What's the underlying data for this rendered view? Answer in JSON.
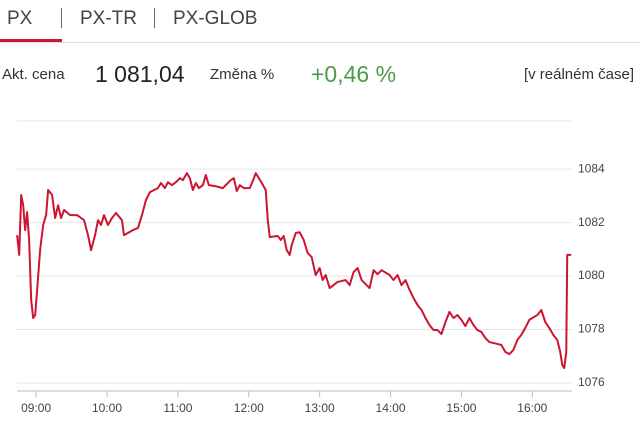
{
  "tabs": [
    "PX",
    "PX-TR",
    "PX-GLOB"
  ],
  "quote": {
    "price_label": "Akt. cena",
    "price": "1 081,04",
    "change_label": "Změna %",
    "change": "+0,46 %",
    "realtime": "[v reálném čase]"
  },
  "chart_data": {
    "type": "line",
    "color": "#cc1530",
    "grid": true,
    "x": [
      8.732,
      8.761,
      8.789,
      8.817,
      8.845,
      8.873,
      8.901,
      8.93,
      8.958,
      8.986,
      9.014,
      9.056,
      9.099,
      9.141,
      9.169,
      9.225,
      9.268,
      9.31,
      9.352,
      9.394,
      9.479,
      9.577,
      9.676,
      9.732,
      9.775,
      9.831,
      9.873,
      9.915,
      9.958,
      10.014,
      10.07,
      10.127,
      10.211,
      10.239,
      10.366,
      10.437,
      10.493,
      10.549,
      10.606,
      10.718,
      10.761,
      10.817,
      10.859,
      10.915,
      10.972,
      11.028,
      11.07,
      11.127,
      11.169,
      11.211,
      11.254,
      11.296,
      11.352,
      11.394,
      11.437,
      11.535,
      11.634,
      11.746,
      11.789,
      11.831,
      11.873,
      11.93,
      12.014,
      12.056,
      12.099,
      12.183,
      12.239,
      12.268,
      12.296,
      12.408,
      12.451,
      12.493,
      12.535,
      12.577,
      12.606,
      12.662,
      12.718,
      12.775,
      12.831,
      12.887,
      12.944,
      13.0,
      13.042,
      13.085,
      13.141,
      13.254,
      13.366,
      13.423,
      13.479,
      13.535,
      13.592,
      13.704,
      13.761,
      13.817,
      13.873,
      13.986,
      14.042,
      14.099,
      14.155,
      14.211,
      14.268,
      14.324,
      14.38,
      14.437,
      14.493,
      14.549,
      14.606,
      14.662,
      14.718,
      14.775,
      14.831,
      14.887,
      14.944,
      15.0,
      15.056,
      15.113,
      15.169,
      15.225,
      15.282,
      15.338,
      15.394,
      15.507,
      15.563,
      15.62,
      15.676,
      15.732,
      15.789,
      15.845,
      15.901,
      15.958,
      16.07,
      16.127,
      16.183,
      16.239,
      16.296,
      16.352,
      16.394,
      16.423,
      16.451,
      16.479,
      16.493,
      16.549
    ],
    "values": [
      1081.53,
      1080.79,
      1083.03,
      1082.65,
      1081.72,
      1082.39,
      1081.35,
      1079.1,
      1078.43,
      1078.54,
      1079.48,
      1080.97,
      1081.91,
      1082.28,
      1083.22,
      1083.03,
      1082.17,
      1082.65,
      1082.17,
      1082.47,
      1082.28,
      1082.28,
      1082.09,
      1081.53,
      1080.97,
      1081.53,
      1082.09,
      1081.91,
      1082.28,
      1081.91,
      1082.17,
      1082.36,
      1082.09,
      1081.53,
      1081.72,
      1081.8,
      1082.28,
      1082.84,
      1083.14,
      1083.29,
      1083.48,
      1083.29,
      1083.51,
      1083.4,
      1083.51,
      1083.66,
      1083.59,
      1083.85,
      1083.66,
      1083.22,
      1083.48,
      1083.29,
      1083.4,
      1083.78,
      1083.4,
      1083.36,
      1083.29,
      1083.59,
      1083.66,
      1083.18,
      1083.4,
      1083.29,
      1083.29,
      1083.55,
      1083.85,
      1083.48,
      1083.22,
      1082.09,
      1081.46,
      1081.5,
      1081.35,
      1081.5,
      1080.97,
      1080.79,
      1081.16,
      1081.61,
      1081.64,
      1081.35,
      1080.86,
      1080.71,
      1080.04,
      1080.3,
      1079.85,
      1080.04,
      1079.55,
      1079.78,
      1079.85,
      1079.66,
      1080.15,
      1080.3,
      1079.85,
      1079.55,
      1080.22,
      1080.07,
      1080.22,
      1080.04,
      1079.85,
      1080.04,
      1079.66,
      1079.85,
      1079.48,
      1079.18,
      1078.92,
      1078.73,
      1078.43,
      1078.17,
      1077.98,
      1077.98,
      1077.83,
      1078.28,
      1078.66,
      1078.43,
      1078.54,
      1078.36,
      1078.13,
      1078.43,
      1078.17,
      1077.98,
      1077.91,
      1077.68,
      1077.53,
      1077.46,
      1077.42,
      1077.16,
      1077.08,
      1077.23,
      1077.61,
      1077.8,
      1078.06,
      1078.36,
      1078.54,
      1078.73,
      1078.28,
      1078.06,
      1077.8,
      1077.61,
      1077.16,
      1076.67,
      1076.56,
      1077.16,
      1080.79,
      1080.79
    ],
    "xlim": [
      8.73,
      16.56
    ],
    "xticks": [
      {
        "value": 9,
        "label": "09:00"
      },
      {
        "value": 10,
        "label": "10:00"
      },
      {
        "value": 11,
        "label": "11:00"
      },
      {
        "value": 12,
        "label": "12:00"
      },
      {
        "value": 13,
        "label": "13:00"
      },
      {
        "value": 14,
        "label": "14:00"
      },
      {
        "value": 15,
        "label": "15:00"
      },
      {
        "value": 16,
        "label": "16:00"
      }
    ],
    "ylim": [
      1075.7,
      1085.8
    ],
    "yticks": [
      1076,
      1078,
      1080,
      1082,
      1084
    ]
  }
}
